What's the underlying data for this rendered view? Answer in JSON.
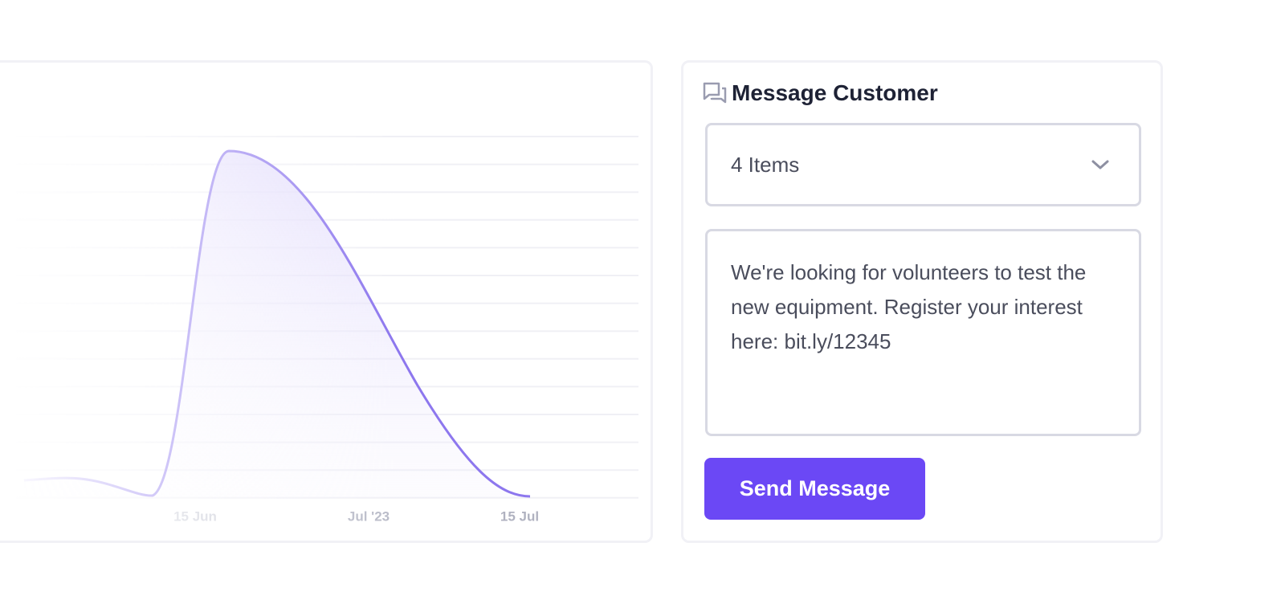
{
  "chart": {
    "x_labels": [
      null,
      "15 Jun",
      "Jul '23",
      "15 Jul"
    ]
  },
  "panel": {
    "title": "Message Customer",
    "select": "4 Items",
    "message": "We're looking for volunteers to test the new equipment. Register your interest here: bit.ly/12345",
    "button": "Send Message"
  }
}
